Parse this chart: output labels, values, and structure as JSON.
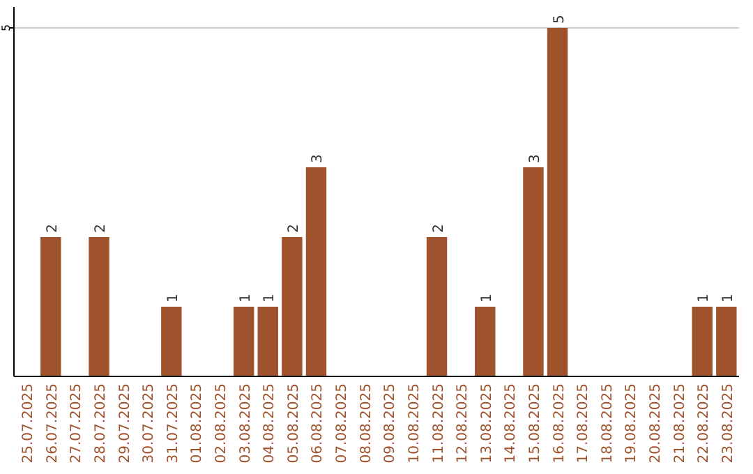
{
  "chart_data": {
    "type": "bar",
    "categories": [
      "25.07.2025",
      "26.07.2025",
      "27.07.2025",
      "28.07.2025",
      "29.07.2025",
      "30.07.2025",
      "31.07.2025",
      "01.08.2025",
      "02.08.2025",
      "03.08.2025",
      "04.08.2025",
      "05.08.2025",
      "06.08.2025",
      "07.08.2025",
      "08.08.2025",
      "09.08.2025",
      "10.08.2025",
      "11.08.2025",
      "12.08.2025",
      "13.08.2025",
      "14.08.2025",
      "15.08.2025",
      "16.08.2025",
      "17.08.2025",
      "18.08.2025",
      "19.08.2025",
      "20.08.2025",
      "21.08.2025",
      "22.08.2025",
      "23.08.2025"
    ],
    "values": [
      0,
      2,
      0,
      2,
      0,
      0,
      1,
      0,
      0,
      1,
      1,
      2,
      3,
      0,
      0,
      0,
      0,
      2,
      0,
      1,
      0,
      3,
      5,
      0,
      0,
      0,
      0,
      0,
      1,
      1
    ],
    "value_labels": [
      null,
      "2",
      null,
      "2",
      null,
      null,
      "1",
      null,
      null,
      "1",
      "1",
      "2",
      "3",
      null,
      null,
      null,
      null,
      "2",
      null,
      "1",
      null,
      "3",
      "5",
      null,
      null,
      null,
      null,
      null,
      "1",
      "1"
    ],
    "color": "#a0522d",
    "ylim": [
      0,
      5.3
    ],
    "yticks": [
      5
    ],
    "grid": "y"
  }
}
